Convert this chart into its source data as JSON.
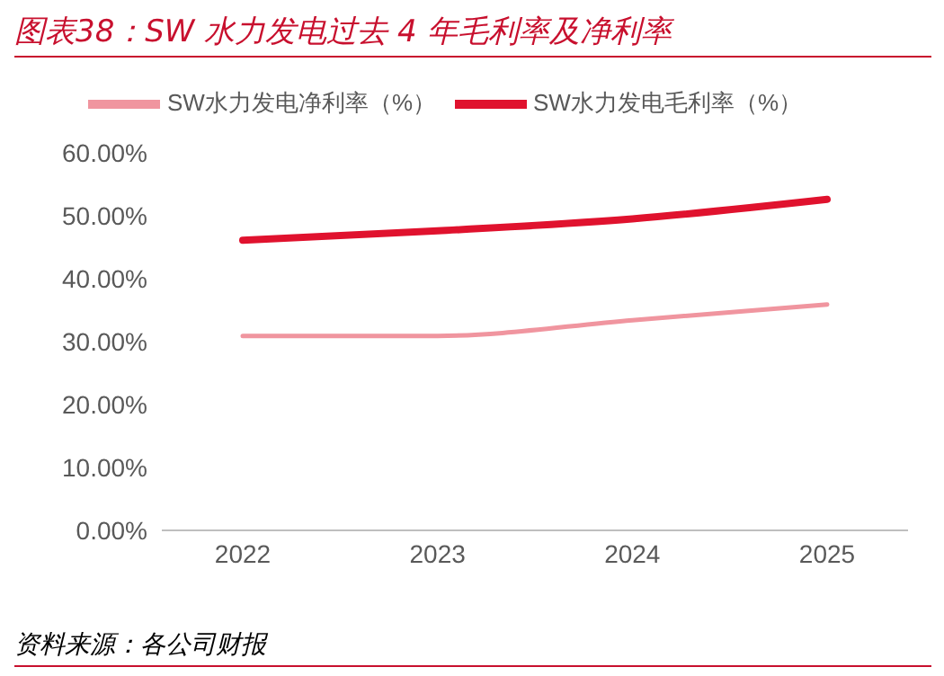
{
  "chart_data": {
    "type": "line",
    "title": "图表38：SW 水力发电过去 4 年毛利率及净利率",
    "annotations": [
      "资料来源：各公司财报"
    ],
    "categories": [
      "2022",
      "2023",
      "2024",
      "2025"
    ],
    "series": [
      {
        "name": "SW水力发电毛利率（%）",
        "color": "#e0122e",
        "values": [
          46.1,
          47.6,
          49.5,
          52.6
        ]
      },
      {
        "name": "SW水力发电净利率（%）",
        "color": "#f0959f",
        "values": [
          30.9,
          30.9,
          33.4,
          35.9
        ]
      }
    ],
    "ylim": [
      0,
      60
    ],
    "yticks": [
      {
        "value": 0,
        "label": "0.00%"
      },
      {
        "value": 10,
        "label": "10.00%"
      },
      {
        "value": 20,
        "label": "20.00%"
      },
      {
        "value": 30,
        "label": "30.00%"
      },
      {
        "value": 40,
        "label": "40.00%"
      },
      {
        "value": 50,
        "label": "50.00%"
      },
      {
        "value": 60,
        "label": "60.00%"
      }
    ],
    "grid": false,
    "legend": "top",
    "marker": "none",
    "line_style": "solid"
  }
}
